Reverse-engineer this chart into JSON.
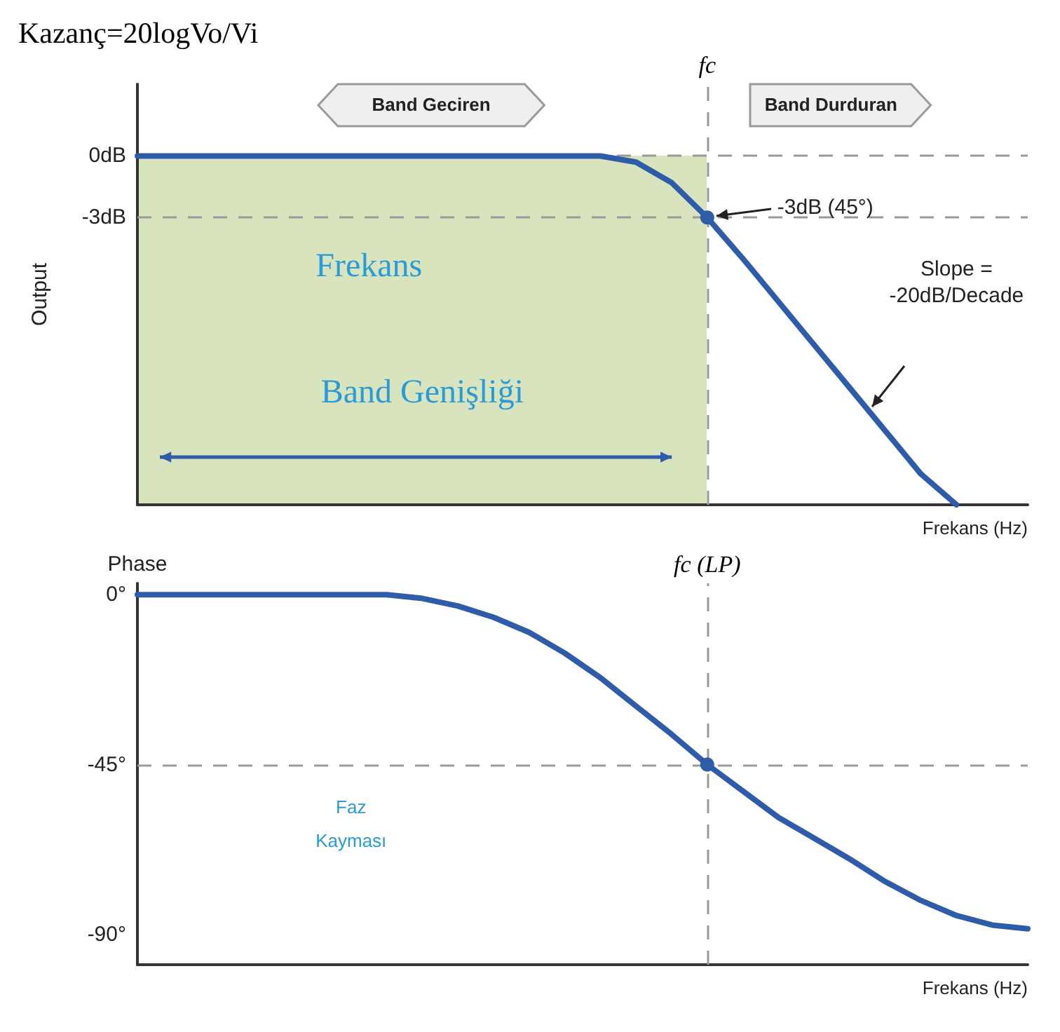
{
  "chart_data": [
    {
      "type": "line",
      "title": "Kazanç=20logVo/Vi",
      "ylabel": "Output",
      "xlabel": "Frekans (Hz)",
      "categories": [
        null,
        null,
        null,
        null,
        null,
        null,
        null,
        null,
        null,
        null,
        null,
        null,
        null,
        null,
        null,
        null,
        null,
        null,
        null,
        null,
        null,
        null,
        null,
        null,
        null,
        null
      ],
      "series": [
        {
          "color": "#2f5ca8",
          "values": [
            0,
            0,
            0,
            0,
            0,
            0,
            0,
            0,
            0,
            0,
            0,
            0,
            0,
            0,
            -0.3,
            -1.3,
            -3,
            -5,
            -7.1,
            -9.2,
            -11.3,
            -13.4,
            -15.5,
            -17,
            null,
            null
          ]
        }
      ],
      "ylim": [
        -17,
        3.5
      ],
      "yticks": [
        {
          "value": 0,
          "label": "0dB"
        },
        {
          "value": -3,
          "label": "-3dB"
        }
      ],
      "tick_labels": "y",
      "marker": "none",
      "ref_lines": [
        {
          "axis": "x",
          "label": "fc",
          "color": "#999999",
          "line_style": "dashed"
        },
        {
          "axis": "y",
          "value": 0,
          "color": "#999999",
          "line_style": "dashed"
        },
        {
          "axis": "y",
          "value": -3,
          "color": "#999999",
          "line_style": "dashed"
        }
      ],
      "annotations": [
        "Band Geciren",
        "Band Durduran",
        "Frekans",
        "Band Genişliği",
        {
          "text": "-3dB (45°)",
          "y": -3
        },
        "Slope = -20dB/Decade"
      ]
    },
    {
      "type": "line",
      "ylabel": "Phase",
      "xlabel": "Frekans (Hz)",
      "categories": [
        null,
        null,
        null,
        null,
        null,
        null,
        null,
        null,
        null,
        null,
        null,
        null,
        null,
        null,
        null,
        null,
        null,
        null,
        null,
        null,
        null,
        null,
        null,
        null,
        null,
        null
      ],
      "series": [
        {
          "color": "#2f5ca8",
          "values": [
            0,
            0,
            0,
            0,
            0,
            0,
            0,
            0,
            -1,
            -3,
            -6,
            -10,
            -15.5,
            -22,
            -29.5,
            -37,
            -45,
            -52,
            -59,
            -64.5,
            -70,
            -76,
            -81,
            -85,
            -87.5,
            -88.5
          ]
        }
      ],
      "ylim": [
        -98,
        3
      ],
      "yticks": [
        {
          "value": 0,
          "label": "0°"
        },
        {
          "value": -45,
          "label": "-45°"
        },
        {
          "value": -90,
          "label": "-90°"
        }
      ],
      "tick_labels": "y",
      "marker": "none",
      "ref_lines": [
        {
          "axis": "x",
          "label": "fc (LP)",
          "color": "#999999",
          "line_style": "dashed"
        },
        {
          "axis": "y",
          "value": -45,
          "color": "#999999",
          "line_style": "dashed"
        }
      ],
      "annotations": [
        "Faz Kayması"
      ]
    }
  ]
}
